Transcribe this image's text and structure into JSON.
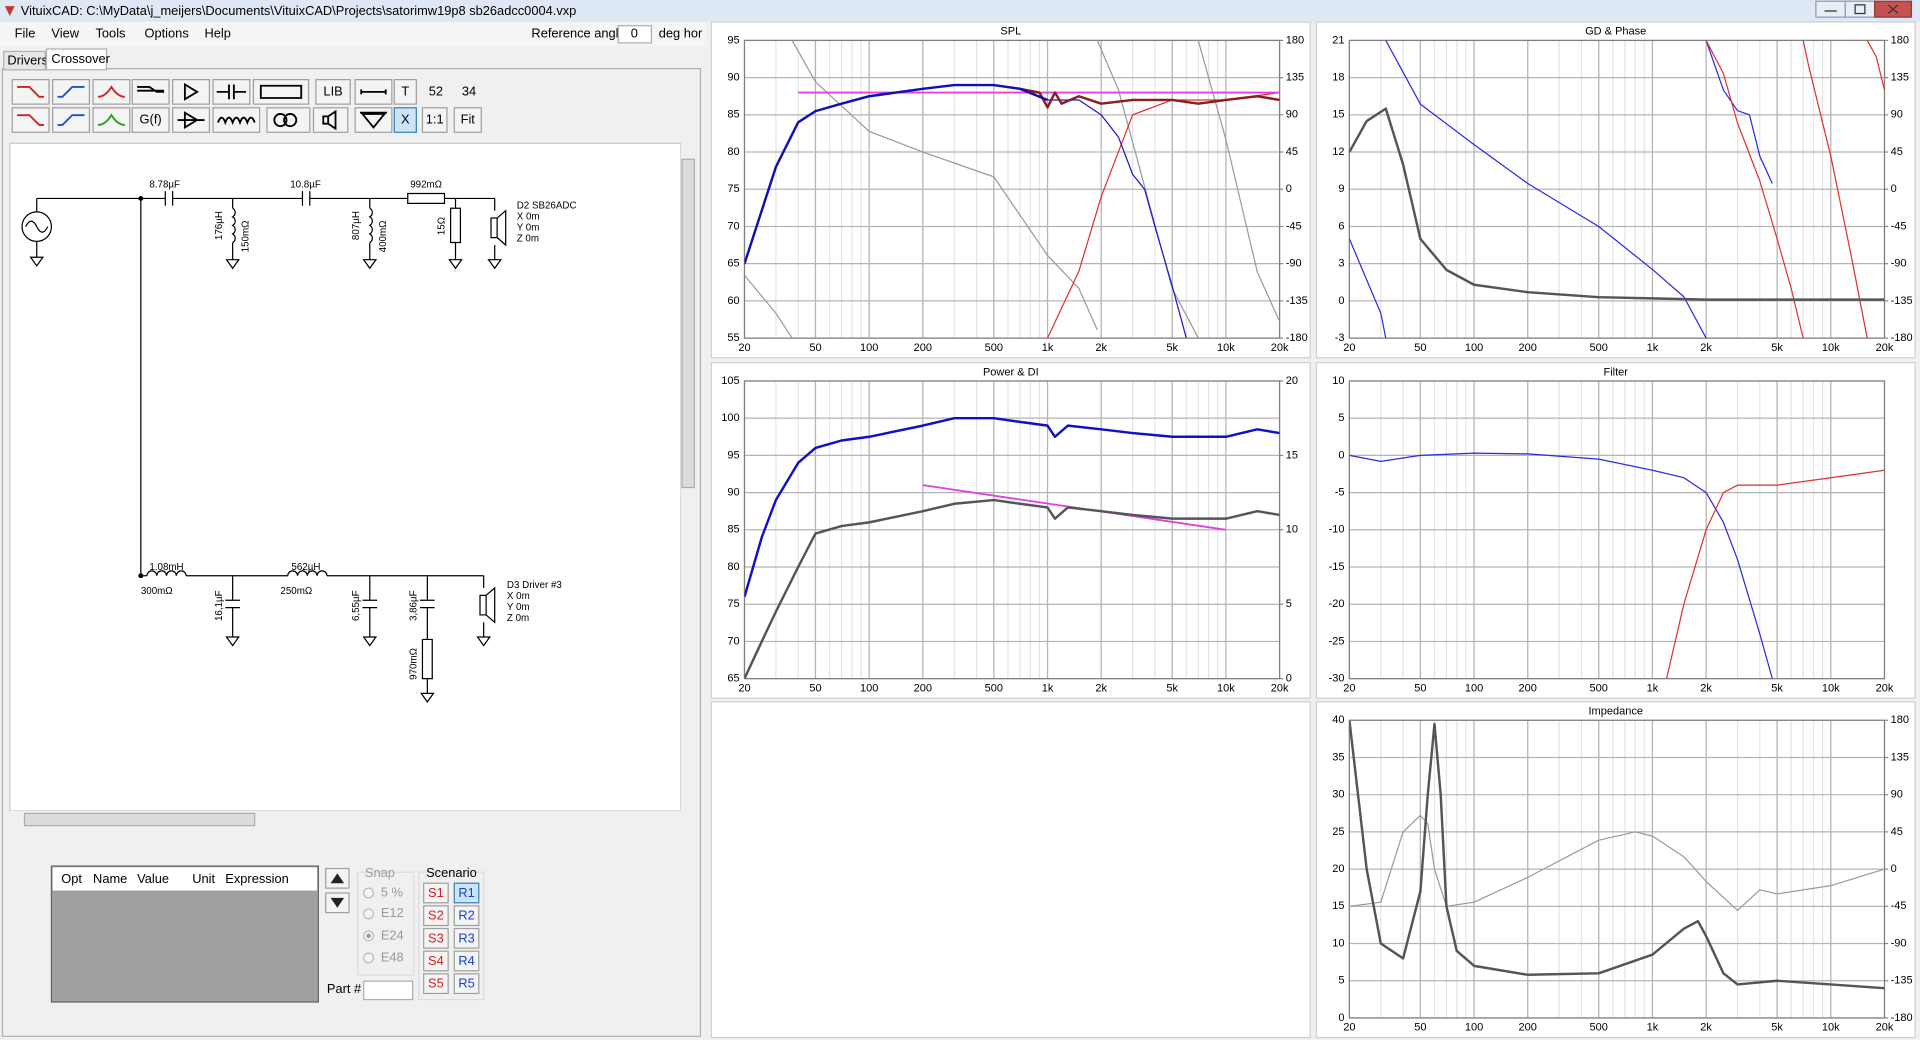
{
  "window": {
    "title": "VituixCAD: C:\\MyData\\j_meijers\\Documents\\VituixCAD\\Projects\\satorimw19p8 sb26adcc0004.vxp"
  },
  "menu": [
    "File",
    "View",
    "Tools",
    "Options",
    "Help"
  ],
  "reference_angle": {
    "label": "Reference angle",
    "value": "0",
    "unit": "deg hor"
  },
  "tabs": [
    "Drivers",
    "Crossover"
  ],
  "toolbar": {
    "row1": [
      "LIB",
      "T",
      "52",
      "34"
    ],
    "row2": [
      "G(f)",
      "X",
      "1:1",
      "Fit"
    ]
  },
  "schematic": {
    "labels": {
      "c1": "8.78µF",
      "c2": "10.8µF",
      "r1": "992mΩ",
      "l1": "176µH",
      "l1r": "150mΩ",
      "l2": "807µH",
      "l2r": "400mΩ",
      "r2": "15Ω",
      "l3": "1.08mH",
      "l3r": "300mΩ",
      "l4": "562µH",
      "l4r": "250mΩ",
      "c3": "16,1µF",
      "c4": "6,55µF",
      "c5": "3,86µF",
      "r3": "970mΩ"
    },
    "drivers": [
      {
        "name": "D2 SB26ADC",
        "x": "X 0m",
        "y": "Y 0m",
        "z": "Z 0m"
      },
      {
        "name": "D3 Driver #3",
        "x": "X 0m",
        "y": "Y 0m",
        "z": "Z 0m"
      }
    ]
  },
  "parameters": {
    "headers": [
      "Opt",
      "Name",
      "Value",
      "Unit",
      "Expression"
    ]
  },
  "snap": {
    "label": "Snap",
    "options": [
      "5 %",
      "E12",
      "E24",
      "E48"
    ]
  },
  "part": "Part #",
  "scenario": {
    "label": "Scenario",
    "s": [
      "S1",
      "S2",
      "S3",
      "S4",
      "S5"
    ],
    "r": [
      "R1",
      "R2",
      "R3",
      "R4",
      "R5"
    ]
  },
  "chart_data": [
    {
      "type": "line",
      "title": "SPL",
      "xscale": "log",
      "grid": true,
      "xlim": [
        20,
        20000
      ],
      "xticks": [
        20,
        50,
        100,
        200,
        500,
        {
          "value": 1000,
          "label": "1k"
        },
        {
          "value": 2000,
          "label": "2k"
        },
        {
          "value": 5000,
          "label": "5k"
        },
        {
          "value": 10000,
          "label": "10k"
        },
        {
          "value": 20000,
          "label": "20k"
        }
      ],
      "ylim": [
        55,
        95
      ],
      "yticks": [
        55,
        60,
        65,
        70,
        75,
        80,
        85,
        90,
        95
      ],
      "y2lim": [
        -180,
        180
      ],
      "y2ticks": [
        -180,
        -135,
        -90,
        -45,
        0,
        45,
        90,
        135,
        180
      ],
      "series": [
        {
          "color": "#9a9a9a",
          "line_width": 1,
          "axis": "y2",
          "x": [
            20,
            30,
            37
          ],
          "values": [
            -104,
            -150,
            -180
          ]
        },
        {
          "color": "#9a9a9a",
          "line_width": 1,
          "axis": "y2",
          "x": [
            37,
            50,
            100,
            200,
            500,
            1000,
            1500,
            1900
          ],
          "values": [
            180,
            130,
            70,
            45,
            15,
            -80,
            -120,
            -170
          ]
        },
        {
          "color": "#9a9a9a",
          "line_width": 1,
          "axis": "y2",
          "x": [
            1900,
            2500,
            5000,
            7000
          ],
          "values": [
            180,
            120,
            -120,
            -180
          ]
        },
        {
          "color": "#9a9a9a",
          "line_width": 1,
          "axis": "y2",
          "x": [
            7000,
            10000,
            15000,
            20000
          ],
          "values": [
            180,
            60,
            -100,
            -160
          ]
        },
        {
          "color": "#e03030",
          "line_width": 1,
          "x": [
            1000,
            1500,
            2000,
            3000,
            5000,
            10000,
            20000
          ],
          "values": [
            55,
            64,
            74,
            85,
            87,
            87,
            88
          ]
        },
        {
          "color": "#1a1ac8",
          "line_width": 1,
          "x": [
            1000,
            1500,
            2000,
            2500,
            3000,
            3500,
            4000,
            5000,
            6000
          ],
          "values": [
            87,
            87,
            85,
            82,
            77,
            75,
            70,
            62,
            55
          ]
        },
        {
          "color": "#e040e0",
          "line_width": 1.5,
          "x": [
            40,
            20000
          ],
          "values": [
            88,
            88
          ]
        },
        {
          "color": "#8b1e1e",
          "line_width": 2,
          "x": [
            700,
            900,
            1000,
            1100,
            1200,
            1500,
            2000,
            3000,
            5000,
            7000,
            10000,
            15000,
            20000
          ],
          "values": [
            88.5,
            88,
            86,
            88,
            86.5,
            87.5,
            86.5,
            87,
            87,
            86.5,
            87,
            87.5,
            87
          ]
        },
        {
          "color": "#1010b0",
          "line_width": 2,
          "x": [
            20,
            30,
            40,
            50,
            70,
            100,
            200,
            300,
            500,
            700,
            1000
          ],
          "values": [
            65,
            78,
            84,
            85.5,
            86.5,
            87.5,
            88.5,
            89,
            89,
            88.5,
            87
          ]
        }
      ]
    },
    {
      "type": "line",
      "title": "GD & Phase",
      "xscale": "log",
      "grid": true,
      "xlim": [
        20,
        20000
      ],
      "xticks": [
        20,
        50,
        100,
        200,
        500,
        {
          "value": 1000,
          "label": "1k"
        },
        {
          "value": 2000,
          "label": "2k"
        },
        {
          "value": 5000,
          "label": "5k"
        },
        {
          "value": 10000,
          "label": "10k"
        },
        {
          "value": 20000,
          "label": "20k"
        }
      ],
      "ylim": [
        -3,
        21
      ],
      "yticks": [
        -3,
        0,
        3,
        6,
        9,
        12,
        15,
        18,
        21
      ],
      "y2lim": [
        -180,
        180
      ],
      "y2ticks": [
        -180,
        -135,
        -90,
        -45,
        0,
        45,
        90,
        135,
        180
      ],
      "series": [
        {
          "color": "#2a2ae0",
          "line_width": 1,
          "axis": "y2",
          "x": [
            20,
            30,
            32
          ],
          "values": [
            -60,
            -150,
            -180
          ]
        },
        {
          "color": "#2a2ae0",
          "line_width": 1,
          "axis": "y2",
          "x": [
            32,
            50,
            100,
            200,
            500,
            1000,
            1500,
            2000
          ],
          "values": [
            180,
            103,
            54,
            7,
            -45,
            -97,
            -130,
            -180
          ]
        },
        {
          "color": "#2a2ae0",
          "line_width": 1,
          "axis": "y2",
          "x": [
            2000,
            2500,
            3000,
            3500,
            4000,
            4700
          ],
          "values": [
            180,
            120,
            95,
            90,
            40,
            7
          ]
        },
        {
          "color": "#e03030",
          "line_width": 1,
          "axis": "y2",
          "x": [
            2000,
            2500,
            3000,
            4000,
            5000,
            6000,
            7000
          ],
          "values": [
            180,
            140,
            80,
            10,
            -60,
            -120,
            -180
          ]
        },
        {
          "color": "#e03030",
          "line_width": 1,
          "axis": "y2",
          "x": [
            7000,
            7500,
            10000,
            13000,
            16000
          ],
          "values": [
            180,
            150,
            40,
            -80,
            -180
          ]
        },
        {
          "color": "#e03030",
          "line_width": 1,
          "axis": "y2",
          "x": [
            16000,
            18000,
            20000
          ],
          "values": [
            180,
            160,
            120
          ]
        },
        {
          "color": "#555555",
          "line_width": 2,
          "x": [
            20,
            25,
            32,
            40,
            50,
            70,
            100,
            200,
            500,
            1000,
            2000,
            5000,
            20000
          ],
          "values": [
            12,
            14.5,
            15.5,
            11,
            5,
            2.5,
            1.3,
            0.7,
            0.3,
            0.2,
            0.1,
            0.1,
            0.1
          ]
        }
      ]
    },
    {
      "type": "line",
      "title": "Power & DI",
      "xscale": "log",
      "grid": true,
      "xlim": [
        20,
        20000
      ],
      "xticks": [
        20,
        50,
        100,
        200,
        500,
        {
          "value": 1000,
          "label": "1k"
        },
        {
          "value": 2000,
          "label": "2k"
        },
        {
          "value": 5000,
          "label": "5k"
        },
        {
          "value": 10000,
          "label": "10k"
        },
        {
          "value": 20000,
          "label": "20k"
        }
      ],
      "ylim": [
        65,
        105
      ],
      "yticks": [
        65,
        70,
        75,
        80,
        85,
        90,
        95,
        100,
        105
      ],
      "y2lim": [
        0,
        20
      ],
      "y2ticks": [
        0,
        5,
        10,
        15,
        20
      ],
      "series": [
        {
          "color": "#e040e0",
          "line_width": 1.5,
          "x": [
            200,
            10000
          ],
          "values": [
            91,
            85
          ]
        },
        {
          "color": "#555555",
          "line_width": 2,
          "x": [
            20,
            25,
            30,
            40,
            50,
            70,
            100,
            200,
            300,
            500,
            700,
            1000,
            1100,
            1300,
            2000,
            3000,
            5000,
            7000,
            10000,
            15000,
            20000
          ],
          "values": [
            65,
            70,
            74,
            80,
            84.5,
            85.5,
            86,
            87.5,
            88.5,
            89,
            88.5,
            88,
            86.5,
            88,
            87.5,
            87,
            86.5,
            86.5,
            86.5,
            87.5,
            87
          ]
        },
        {
          "color": "#1010c8",
          "line_width": 2,
          "x": [
            20,
            25,
            30,
            40,
            50,
            70,
            100,
            200,
            300,
            500,
            700,
            1000,
            1100,
            1300,
            2000,
            3000,
            5000,
            7000,
            10000,
            15000,
            20000
          ],
          "values": [
            76,
            84,
            89,
            94,
            96,
            97,
            97.5,
            99,
            100,
            100,
            99.5,
            99,
            97.5,
            99,
            98.5,
            98,
            97.5,
            97.5,
            97.5,
            98.5,
            98
          ]
        }
      ]
    },
    {
      "type": "line",
      "title": "Filter",
      "xscale": "log",
      "grid": true,
      "xlim": [
        20,
        20000
      ],
      "xticks": [
        20,
        50,
        100,
        200,
        500,
        {
          "value": 1000,
          "label": "1k"
        },
        {
          "value": 2000,
          "label": "2k"
        },
        {
          "value": 5000,
          "label": "5k"
        },
        {
          "value": 10000,
          "label": "10k"
        },
        {
          "value": 20000,
          "label": "20k"
        }
      ],
      "ylim": [
        -30,
        10
      ],
      "yticks": [
        -30,
        -25,
        -20,
        -15,
        -10,
        -5,
        0,
        5,
        10
      ],
      "series": [
        {
          "color": "#2a2ae0",
          "line_width": 1,
          "x": [
            20,
            30,
            50,
            100,
            200,
            500,
            1000,
            1500,
            2000,
            2500,
            3000,
            4000,
            4700
          ],
          "values": [
            0,
            -0.8,
            0,
            0.3,
            0.2,
            -0.5,
            -2,
            -3,
            -5,
            -9,
            -14,
            -24,
            -30
          ]
        },
        {
          "color": "#e03030",
          "line_width": 1,
          "x": [
            1200,
            1500,
            2000,
            2500,
            3000,
            5000,
            10000,
            20000
          ],
          "values": [
            -30,
            -20,
            -10,
            -5,
            -4,
            -4,
            -3,
            -2
          ]
        }
      ]
    },
    {
      "type": "line",
      "title": "Impedance",
      "xscale": "log",
      "grid": true,
      "xlim": [
        20,
        20000
      ],
      "xticks": [
        20,
        50,
        100,
        200,
        500,
        {
          "value": 1000,
          "label": "1k"
        },
        {
          "value": 2000,
          "label": "2k"
        },
        {
          "value": 5000,
          "label": "5k"
        },
        {
          "value": 10000,
          "label": "10k"
        },
        {
          "value": 20000,
          "label": "20k"
        }
      ],
      "ylim": [
        0,
        40
      ],
      "yticks": [
        0,
        5,
        10,
        15,
        20,
        25,
        30,
        35,
        40
      ],
      "y2lim": [
        -180,
        180
      ],
      "y2ticks": [
        -180,
        -135,
        -90,
        -45,
        0,
        45,
        90,
        135,
        180
      ],
      "series": [
        {
          "color": "#9a9a9a",
          "line_width": 1,
          "axis": "y2",
          "x": [
            20,
            30,
            40,
            50,
            55,
            60,
            70,
            100,
            200,
            500,
            800,
            1000,
            1500,
            2000,
            3000,
            4000,
            5000,
            10000,
            20000
          ],
          "values": [
            -45,
            -40,
            45,
            65,
            55,
            0,
            -45,
            -40,
            -10,
            35,
            45,
            40,
            15,
            -15,
            -50,
            -25,
            -30,
            -20,
            0
          ]
        },
        {
          "color": "#555555",
          "line_width": 2,
          "x": [
            20,
            25,
            30,
            40,
            50,
            55,
            60,
            65,
            70,
            80,
            100,
            200,
            500,
            1000,
            1500,
            1800,
            2000,
            2500,
            3000,
            5000,
            10000,
            20000
          ],
          "values": [
            40,
            20,
            10,
            8,
            17,
            30,
            39.5,
            30,
            15,
            9,
            7,
            5.8,
            6,
            8.5,
            12,
            13,
            11,
            6,
            4.5,
            5,
            4.5,
            4
          ]
        }
      ]
    }
  ]
}
